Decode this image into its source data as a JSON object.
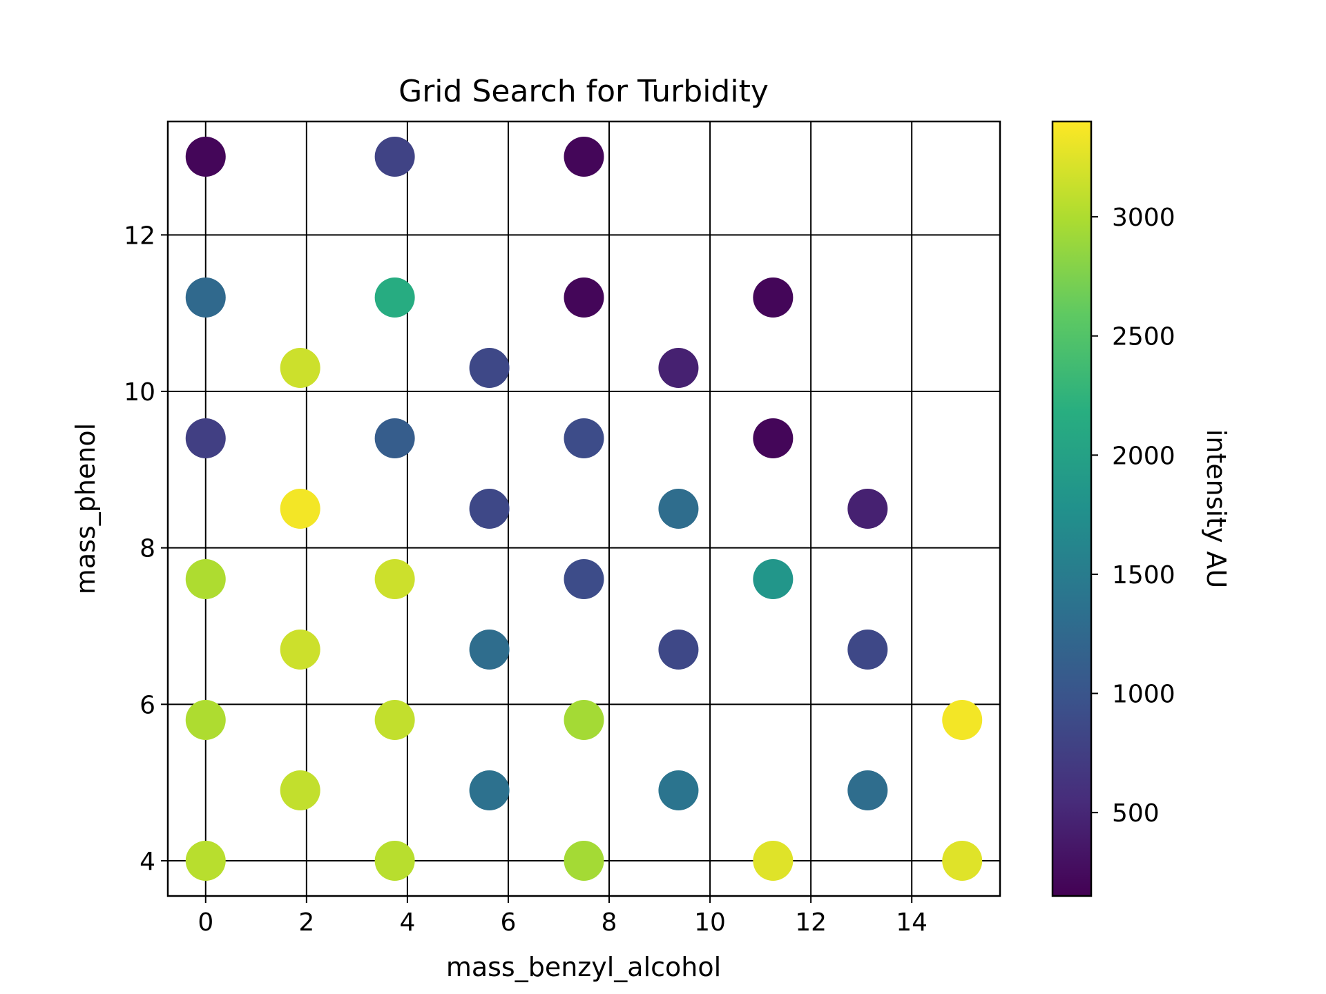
{
  "chart_data": {
    "type": "scatter",
    "title": "Grid Search for Turbidity",
    "xlabel": "mass_benzyl_alcohol",
    "ylabel": "mass_phenol",
    "xlim": [
      -0.75,
      15.75
    ],
    "ylim": [
      3.55,
      13.45
    ],
    "x_ticks": [
      0,
      2,
      4,
      6,
      8,
      10,
      12,
      14
    ],
    "y_ticks": [
      4,
      6,
      8,
      10,
      12
    ],
    "grid": true,
    "colorbar": {
      "label": "intensity AU",
      "range": [
        150,
        3400
      ],
      "ticks": [
        500,
        1000,
        1500,
        2000,
        2500,
        3000
      ],
      "colormap": "viridis"
    },
    "points": [
      {
        "x": 0.0,
        "y": 13.0,
        "value": 200
      },
      {
        "x": 3.75,
        "y": 13.0,
        "value": 800
      },
      {
        "x": 7.5,
        "y": 13.0,
        "value": 200
      },
      {
        "x": 0.0,
        "y": 11.2,
        "value": 1250
      },
      {
        "x": 3.75,
        "y": 11.2,
        "value": 2150
      },
      {
        "x": 7.5,
        "y": 11.2,
        "value": 200
      },
      {
        "x": 11.25,
        "y": 11.2,
        "value": 200
      },
      {
        "x": 1.875,
        "y": 10.3,
        "value": 3150
      },
      {
        "x": 5.625,
        "y": 10.3,
        "value": 850
      },
      {
        "x": 9.375,
        "y": 10.3,
        "value": 450
      },
      {
        "x": 0.0,
        "y": 9.4,
        "value": 750
      },
      {
        "x": 3.75,
        "y": 9.4,
        "value": 1100
      },
      {
        "x": 7.5,
        "y": 9.4,
        "value": 900
      },
      {
        "x": 11.25,
        "y": 9.4,
        "value": 200
      },
      {
        "x": 1.875,
        "y": 8.5,
        "value": 3350
      },
      {
        "x": 5.625,
        "y": 8.5,
        "value": 850
      },
      {
        "x": 9.375,
        "y": 8.5,
        "value": 1300
      },
      {
        "x": 13.125,
        "y": 8.5,
        "value": 450
      },
      {
        "x": 0.0,
        "y": 7.6,
        "value": 3000
      },
      {
        "x": 3.75,
        "y": 7.6,
        "value": 3150
      },
      {
        "x": 7.5,
        "y": 7.6,
        "value": 900
      },
      {
        "x": 11.25,
        "y": 7.6,
        "value": 1850
      },
      {
        "x": 1.875,
        "y": 6.7,
        "value": 3150
      },
      {
        "x": 5.625,
        "y": 6.7,
        "value": 1300
      },
      {
        "x": 9.375,
        "y": 6.7,
        "value": 850
      },
      {
        "x": 13.125,
        "y": 6.7,
        "value": 850
      },
      {
        "x": 0.0,
        "y": 5.8,
        "value": 3000
      },
      {
        "x": 3.75,
        "y": 5.8,
        "value": 3100
      },
      {
        "x": 7.5,
        "y": 5.8,
        "value": 2950
      },
      {
        "x": 15.0,
        "y": 5.8,
        "value": 3350
      },
      {
        "x": 1.875,
        "y": 4.9,
        "value": 3100
      },
      {
        "x": 5.625,
        "y": 4.9,
        "value": 1350
      },
      {
        "x": 9.375,
        "y": 4.9,
        "value": 1400
      },
      {
        "x": 13.125,
        "y": 4.9,
        "value": 1300
      },
      {
        "x": 0.0,
        "y": 4.0,
        "value": 3050
      },
      {
        "x": 3.75,
        "y": 4.0,
        "value": 3050
      },
      {
        "x": 7.5,
        "y": 4.0,
        "value": 2950
      },
      {
        "x": 11.25,
        "y": 4.0,
        "value": 3250
      },
      {
        "x": 15.0,
        "y": 4.0,
        "value": 3250
      }
    ]
  }
}
